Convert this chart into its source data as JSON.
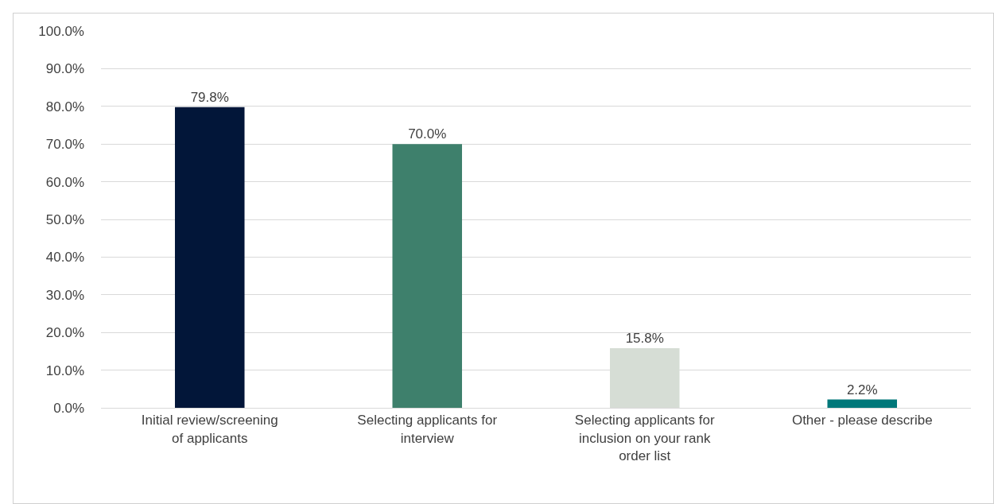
{
  "chart_data": {
    "type": "bar",
    "categories": [
      "Initial review/screening of applicants",
      "Selecting applicants for interview",
      "Selecting applicants for inclusion on your rank order list",
      "Other - please describe"
    ],
    "values": [
      79.8,
      70.0,
      15.8,
      2.2
    ],
    "value_labels": [
      "79.8%",
      "70.0%",
      "15.8%",
      "2.2%"
    ],
    "colors": [
      "#021639",
      "#3e806c",
      "#d6ddd5",
      "#00787a"
    ],
    "ylim": [
      0,
      100
    ],
    "yticks": [
      {
        "value": 0,
        "label": "0.0%"
      },
      {
        "value": 10,
        "label": "10.0%"
      },
      {
        "value": 20,
        "label": "20.0%"
      },
      {
        "value": 30,
        "label": "30.0%"
      },
      {
        "value": 40,
        "label": "40.0%"
      },
      {
        "value": 50,
        "label": "50.0%"
      },
      {
        "value": 60,
        "label": "60.0%"
      },
      {
        "value": 70,
        "label": "70.0%"
      },
      {
        "value": 80,
        "label": "80.0%"
      },
      {
        "value": 90,
        "label": "90.0%"
      },
      {
        "value": 100,
        "label": "100.0%"
      }
    ],
    "grid": "y"
  }
}
